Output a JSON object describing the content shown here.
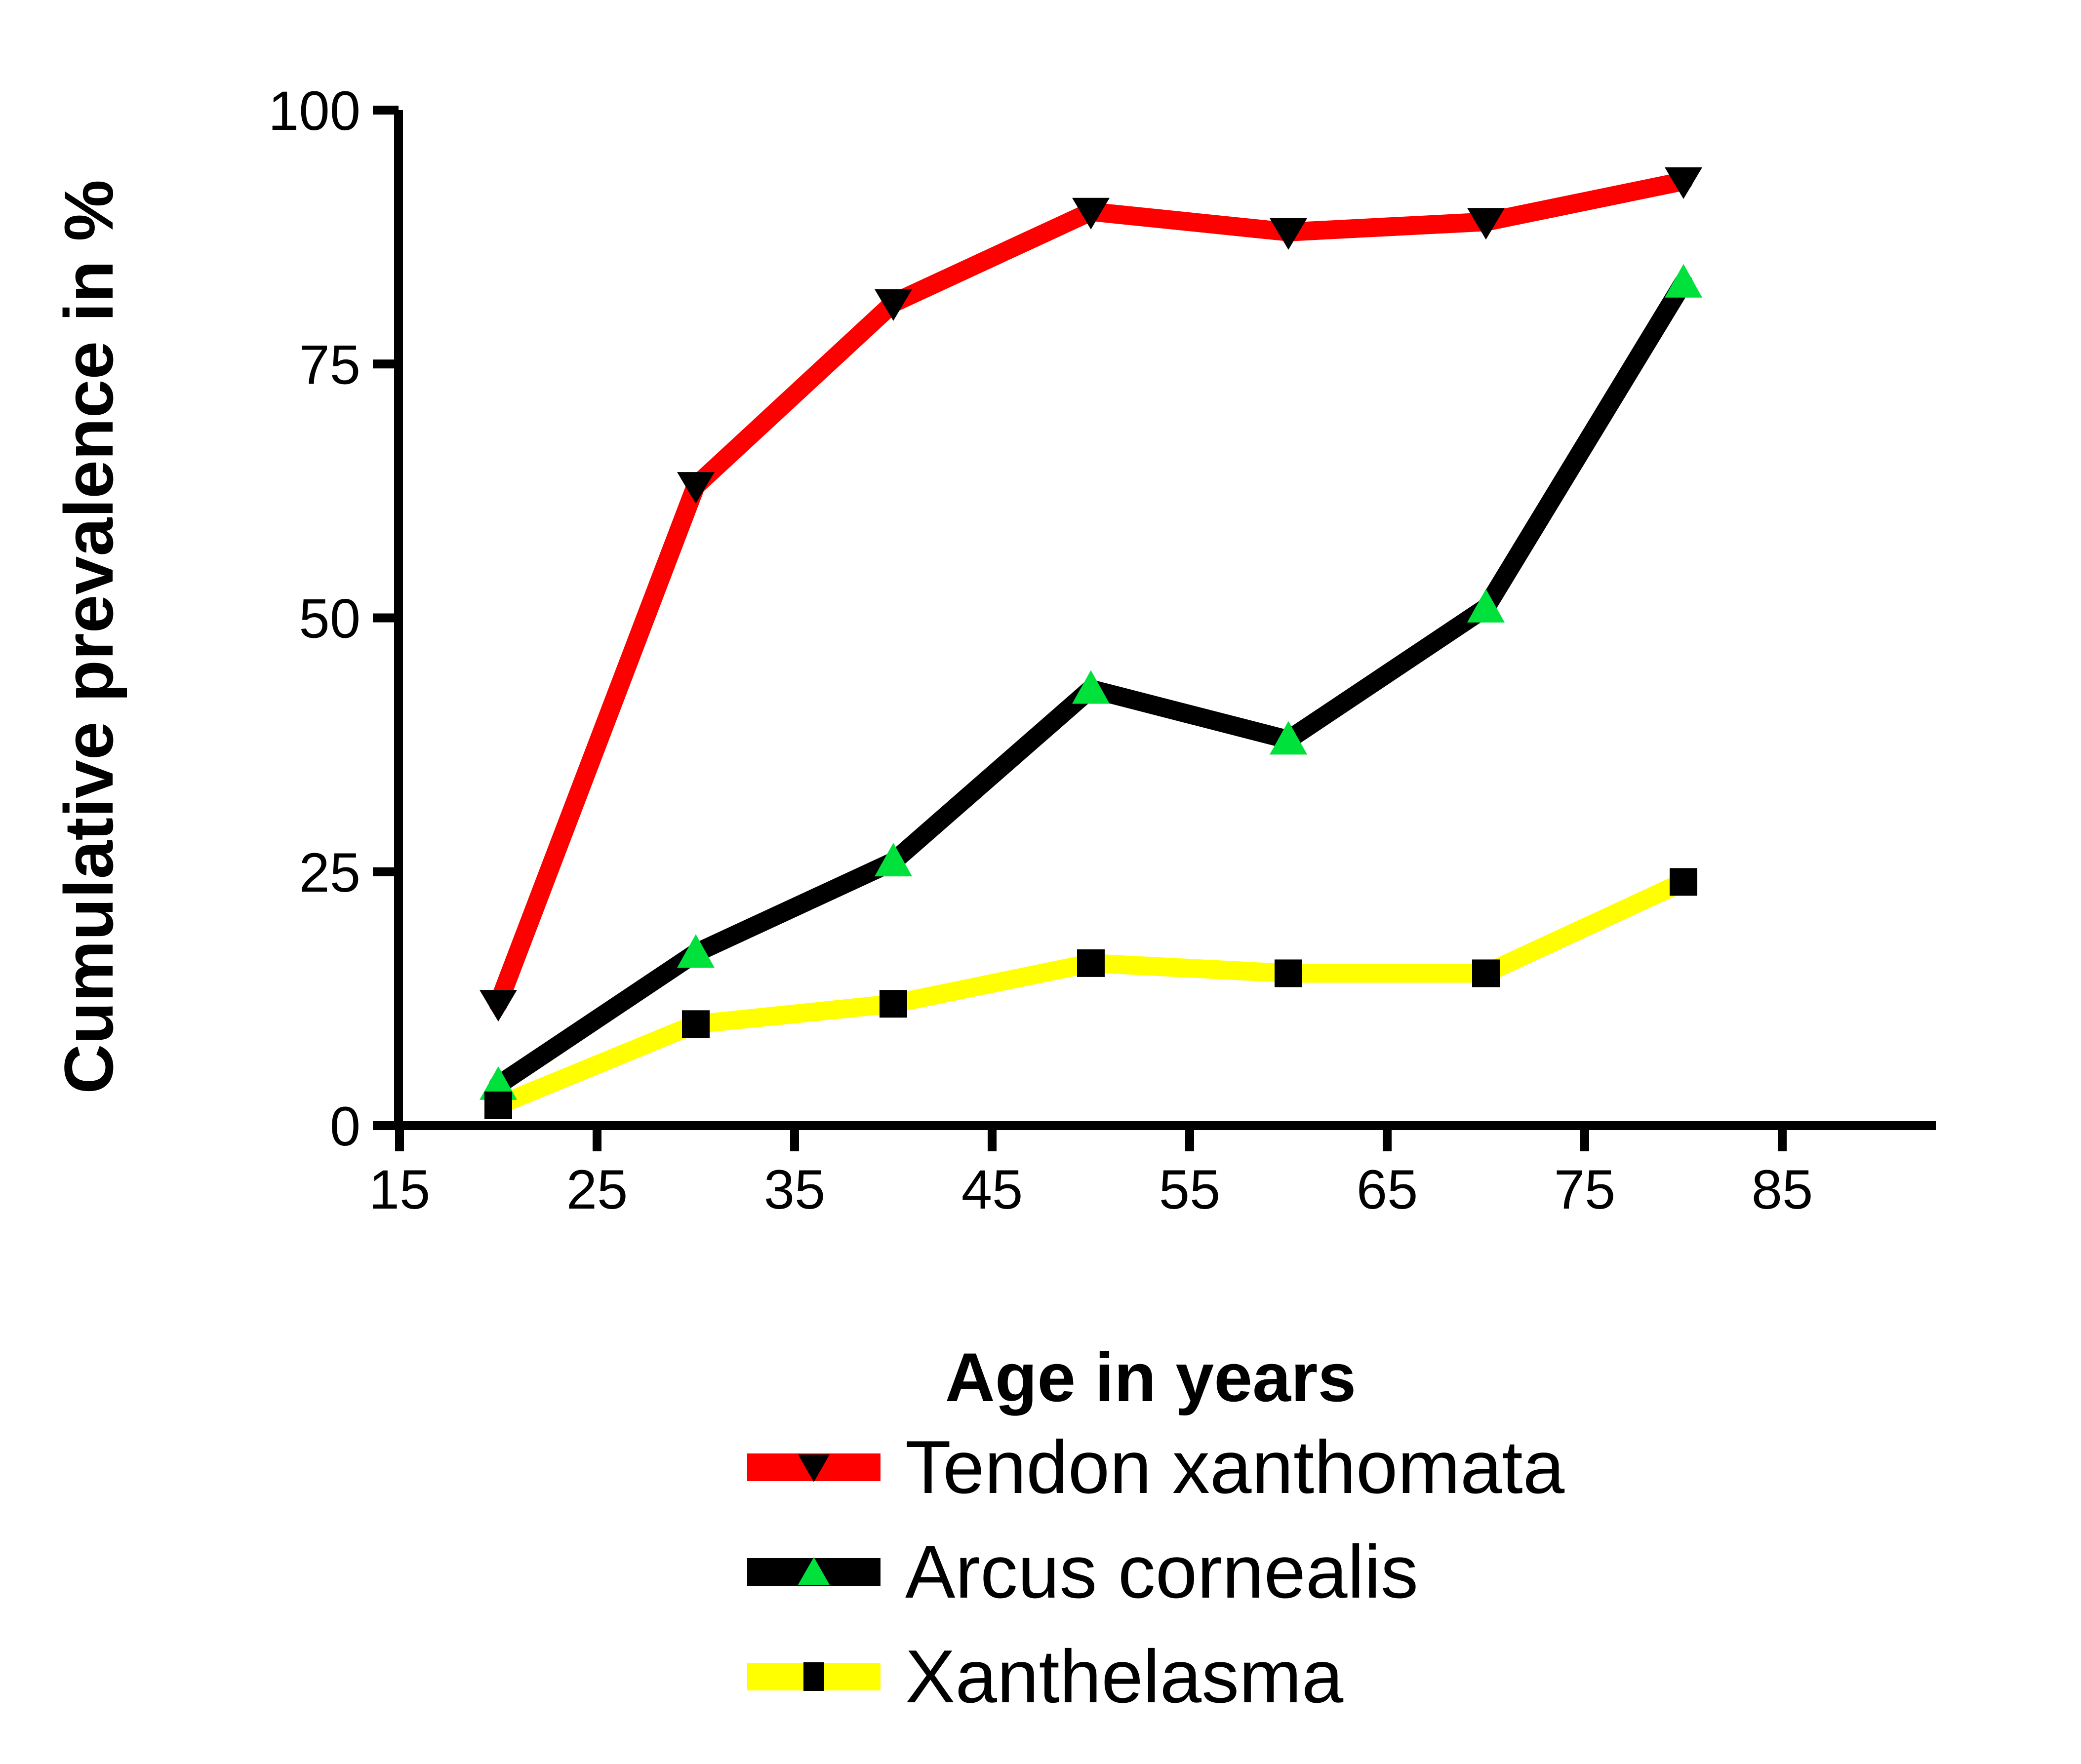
{
  "chart_data": {
    "type": "line",
    "title": "",
    "xlabel": "Age in years",
    "ylabel": "Cumulative prevalence in %",
    "x": [
      20,
      30,
      40,
      50,
      60,
      70,
      80
    ],
    "x_ticks": [
      15,
      25,
      35,
      45,
      55,
      65,
      75,
      85
    ],
    "y_ticks": [
      0,
      25,
      50,
      75,
      100
    ],
    "xlim": [
      15,
      92
    ],
    "ylim": [
      0,
      100
    ],
    "grid": false,
    "legend_position": "bottom",
    "axis_color": "#000000",
    "series": [
      {
        "name": "Tendon xanthomata",
        "line_color": "#FF0000",
        "marker": "triangle-down",
        "marker_color": "#000000",
        "values": [
          12,
          63,
          81,
          90,
          88,
          89,
          93
        ]
      },
      {
        "name": "Arcus cornealis",
        "line_color": "#000000",
        "marker": "triangle-up",
        "marker_color": "#00E13C",
        "values": [
          4,
          17,
          26,
          43,
          38,
          51,
          83
        ]
      },
      {
        "name": "Xanthelasma",
        "line_color": "#FFFF00",
        "marker": "square",
        "marker_color": "#000000",
        "values": [
          2,
          10,
          12,
          16,
          15,
          15,
          24
        ]
      }
    ]
  }
}
